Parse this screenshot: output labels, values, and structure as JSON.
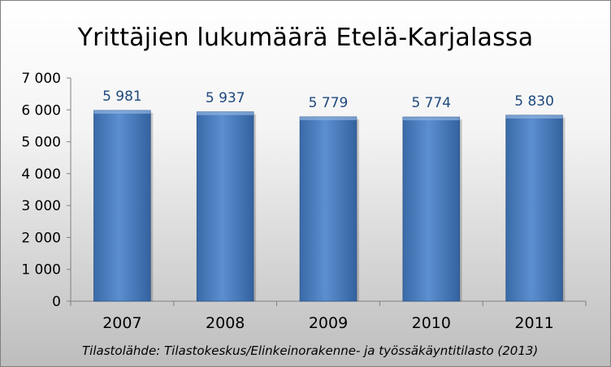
{
  "chart_data": {
    "type": "bar",
    "title": "Yrittäjien lukumäärä Etelä-Karjalassa",
    "categories": [
      "2007",
      "2008",
      "2009",
      "2010",
      "2011"
    ],
    "values": [
      5981,
      5937,
      5779,
      5774,
      5830
    ],
    "data_labels": [
      "5 981",
      "5 937",
      "5 779",
      "5 774",
      "5 830"
    ],
    "ylim": [
      0,
      7000
    ],
    "yticks": [
      0,
      1000,
      2000,
      3000,
      4000,
      5000,
      6000,
      7000
    ],
    "ytick_labels": [
      "0",
      "1 000",
      "2 000",
      "3 000",
      "4 000",
      "5 000",
      "6 000",
      "7 000"
    ],
    "xlabel": "",
    "ylabel": "",
    "grid": false,
    "legend": "none",
    "bar_color": "#4f81bd",
    "label_color": "#1f497d",
    "source": "Tilastolähde: Tilastokeskus/Elinkeinorakenne- ja työssäkäyntitilasto (2013)"
  }
}
